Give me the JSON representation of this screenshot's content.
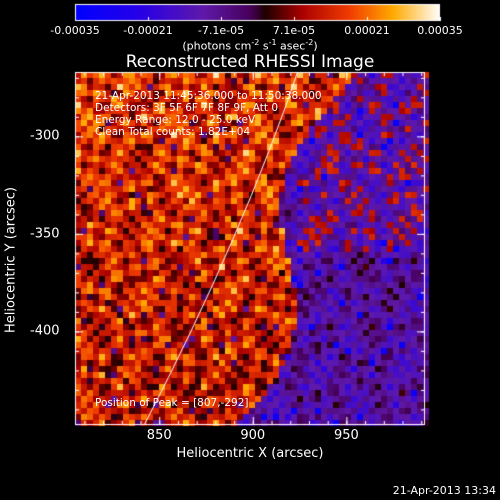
{
  "chart_data": {
    "type": "heatmap",
    "title": "Reconstructed RHESSI Image",
    "xlabel": "Heliocentric X (arcsec)",
    "ylabel": "Heliocentric Y (arcsec)",
    "xlim": [
      805,
      992
    ],
    "ylim": [
      -448,
      -267
    ],
    "xticks": [
      "850",
      "900",
      "950"
    ],
    "yticks": [
      "-300",
      "-350",
      "-400"
    ],
    "colorbar": {
      "ticks": [
        "-0.00035",
        "-0.00021",
        "-7.1e-05",
        "7.1e-05",
        "0.00021",
        "0.00035"
      ],
      "label_text": "(photons cm",
      "label_exp1": "-2",
      "label_mid": " s",
      "label_exp2": "-1",
      "label_mid2": " asec",
      "label_exp3": "-2",
      "label_end": ")",
      "range": [
        -0.00035,
        0.00035
      ]
    },
    "info_lines": [
      "21-Apr-2013 11:45:36.000 to 11:50:38.000",
      "Detectors: 3F 5F 6F 7F 8F 9F, Att 0",
      "Energy Range: 12.0 - 25.0 keV",
      "Clean     Total counts: 1.82E+04"
    ],
    "peak_text": "Position of Peak = [807,-292]",
    "peak": [
      807,
      -292
    ],
    "limb_arc": true
  },
  "footer": {
    "timestamp": "21-Apr-2013 13:34"
  },
  "colors": {
    "background": "#000000",
    "foreground": "#ffffff"
  }
}
